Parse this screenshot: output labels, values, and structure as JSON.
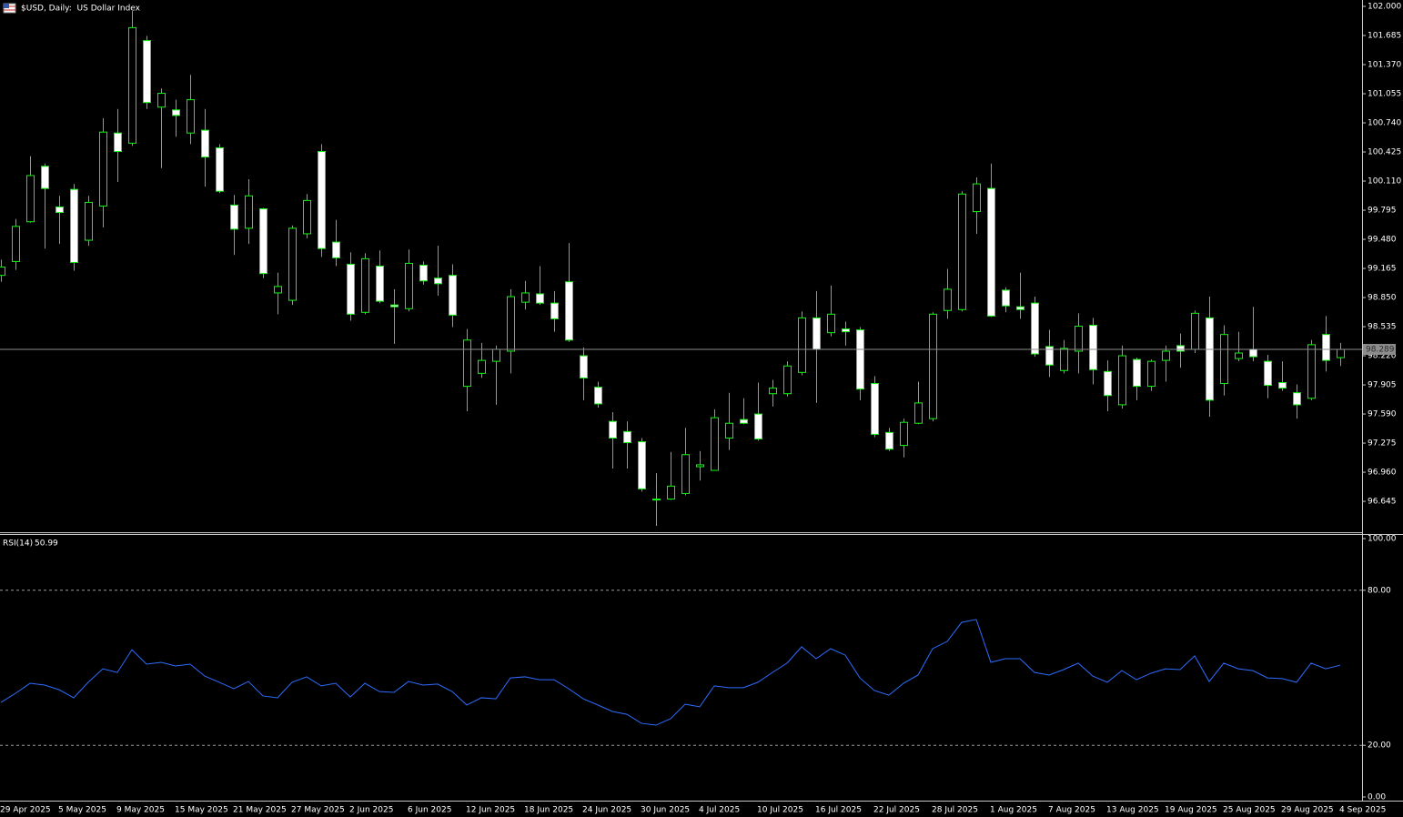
{
  "chart_data": [
    {
      "type": "candlestick",
      "title": "$USD, Daily:  US Dollar Index",
      "categories": [
        "29 Apr 2025",
        null,
        null,
        null,
        "5 May 2025",
        null,
        null,
        null,
        "9 May 2025",
        null,
        null,
        null,
        "15 May 2025",
        null,
        null,
        null,
        "21 May 2025",
        null,
        null,
        null,
        "27 May 2025",
        null,
        null,
        null,
        "2 Jun 2025",
        null,
        null,
        null,
        "6 Jun 2025",
        null,
        null,
        null,
        "12 Jun 2025",
        null,
        null,
        null,
        "18 Jun 2025",
        null,
        null,
        null,
        "24 Jun 2025",
        null,
        null,
        null,
        "30 Jun 2025",
        null,
        null,
        null,
        "4 Jul 2025",
        null,
        null,
        null,
        "10 Jul 2025",
        null,
        null,
        null,
        "16 Jul 2025",
        null,
        null,
        null,
        "22 Jul 2025",
        null,
        null,
        null,
        "28 Jul 2025",
        null,
        null,
        null,
        "1 Aug 2025",
        null,
        null,
        null,
        "7 Aug 2025",
        null,
        null,
        null,
        "13 Aug 2025",
        null,
        null,
        null,
        "19 Aug 2025",
        null,
        null,
        null,
        "25 Aug 2025",
        null,
        null,
        null,
        "29 Aug 2025",
        null,
        null,
        null,
        "4 Sep 2025"
      ],
      "open": [
        99.09,
        99.24,
        99.67,
        100.27,
        99.83,
        100.02,
        99.47,
        99.84,
        100.63,
        100.52,
        101.63,
        100.91,
        100.88,
        100.63,
        100.66,
        100.47,
        99.85,
        99.6,
        99.81,
        98.9,
        98.82,
        99.54,
        100.43,
        99.45,
        99.21,
        98.69,
        99.19,
        98.77,
        98.73,
        99.2,
        99.06,
        99.09,
        97.89,
        98.03,
        98.16,
        98.27,
        98.8,
        98.89,
        98.79,
        99.02,
        98.22,
        97.88,
        97.51,
        97.4,
        97.29,
        96.67,
        96.67,
        96.73,
        97.02,
        96.98,
        97.33,
        97.53,
        97.59,
        97.81,
        97.81,
        98.04,
        98.63,
        98.47,
        98.51,
        98.5,
        97.92,
        97.39,
        97.25,
        97.49,
        97.54,
        98.71,
        98.72,
        99.78,
        100.03,
        98.93,
        98.75,
        98.79,
        98.32,
        98.06,
        98.27,
        98.55,
        98.05,
        97.69,
        98.18,
        97.89,
        98.17,
        98.33,
        98.29,
        98.63,
        97.92,
        98.19,
        98.29,
        98.16,
        97.93,
        97.82,
        97.76,
        98.45,
        98.2
      ],
      "high": [
        99.26,
        99.7,
        100.38,
        100.3,
        99.95,
        100.08,
        99.95,
        100.79,
        100.89,
        101.95,
        101.68,
        101.11,
        100.99,
        101.26,
        100.89,
        100.51,
        99.96,
        100.13,
        99.82,
        99.12,
        99.63,
        99.97,
        100.51,
        99.69,
        99.34,
        99.33,
        99.36,
        98.94,
        99.37,
        99.24,
        99.41,
        99.21,
        98.51,
        98.36,
        98.33,
        98.94,
        99.03,
        99.19,
        98.92,
        99.44,
        98.31,
        97.94,
        97.61,
        97.51,
        97.33,
        96.95,
        97.18,
        97.44,
        97.19,
        97.64,
        97.82,
        97.76,
        97.93,
        97.96,
        98.16,
        98.7,
        98.92,
        98.98,
        98.59,
        98.53,
        98.0,
        97.44,
        97.54,
        97.94,
        98.69,
        99.16,
        100.0,
        100.15,
        100.3,
        98.96,
        99.12,
        98.86,
        98.5,
        98.39,
        98.68,
        98.63,
        98.17,
        98.33,
        98.2,
        98.18,
        98.33,
        98.46,
        98.71,
        98.86,
        98.55,
        98.48,
        98.75,
        98.23,
        98.16,
        97.91,
        98.39,
        98.65,
        98.36
      ],
      "low": [
        99.02,
        99.15,
        99.66,
        99.38,
        99.43,
        99.14,
        99.41,
        99.61,
        100.1,
        100.49,
        100.89,
        100.25,
        100.59,
        100.51,
        100.05,
        99.98,
        99.31,
        99.43,
        99.06,
        98.67,
        98.77,
        99.49,
        99.29,
        99.19,
        98.6,
        98.67,
        98.79,
        98.35,
        98.7,
        98.99,
        98.87,
        98.53,
        97.62,
        97.98,
        97.69,
        98.03,
        98.72,
        98.77,
        98.48,
        98.37,
        97.74,
        97.66,
        97.0,
        97.0,
        96.75,
        96.38,
        96.66,
        96.71,
        96.87,
        96.98,
        97.2,
        97.48,
        97.3,
        97.67,
        97.78,
        98.01,
        97.71,
        98.43,
        98.33,
        97.74,
        97.34,
        97.19,
        97.12,
        97.48,
        97.51,
        98.62,
        98.7,
        99.54,
        98.64,
        98.69,
        98.62,
        98.21,
        97.99,
        98.03,
        98.03,
        97.91,
        97.62,
        97.65,
        97.74,
        97.84,
        97.94,
        98.09,
        98.25,
        97.56,
        97.79,
        98.16,
        98.16,
        97.76,
        97.84,
        97.54,
        97.74,
        98.05,
        98.11
      ],
      "close": [
        99.18,
        99.62,
        100.17,
        100.03,
        99.77,
        99.23,
        99.88,
        100.64,
        100.43,
        101.77,
        100.96,
        101.06,
        100.82,
        100.99,
        100.37,
        100.0,
        99.59,
        99.95,
        99.11,
        98.97,
        99.6,
        99.9,
        99.38,
        99.28,
        98.67,
        99.27,
        98.81,
        98.75,
        99.22,
        99.03,
        99.0,
        98.66,
        98.39,
        98.17,
        98.29,
        98.86,
        98.9,
        98.79,
        98.62,
        98.39,
        97.98,
        97.7,
        97.33,
        97.28,
        96.78,
        96.66,
        96.81,
        97.15,
        97.04,
        97.55,
        97.49,
        97.49,
        97.32,
        97.87,
        98.11,
        98.63,
        98.29,
        98.67,
        98.48,
        97.86,
        97.37,
        97.21,
        97.5,
        97.71,
        98.67,
        98.94,
        99.97,
        100.08,
        98.65,
        98.76,
        98.72,
        98.24,
        98.12,
        98.3,
        98.54,
        98.07,
        97.79,
        98.22,
        97.89,
        98.16,
        98.27,
        98.27,
        98.68,
        97.74,
        98.45,
        98.25,
        98.21,
        97.9,
        97.87,
        97.69,
        98.34,
        98.17,
        98.289
      ],
      "up_color": "#000000",
      "down_color": "#ffffff",
      "wick_color": "#00ff00",
      "ylim": [
        96.311,
        102.069
      ],
      "yticks": [
        {
          "value": 102,
          "label": "102.000"
        },
        101.685,
        {
          "value": 101.37,
          "label": "101.370"
        },
        101.055,
        {
          "value": 100.74,
          "label": "100.740"
        },
        100.425,
        {
          "value": 100.11,
          "label": "100.110"
        },
        99.795,
        {
          "value": 99.48,
          "label": "99.480"
        },
        99.165,
        {
          "value": 98.85,
          "label": "98.850"
        },
        98.535,
        {
          "value": 98.22,
          "label": "98.220"
        },
        97.905,
        {
          "value": 97.59,
          "label": "97.590"
        },
        97.275,
        {
          "value": 96.96,
          "label": "96.960"
        },
        96.645
      ]
    },
    {
      "type": "line",
      "title": "RSI(14)",
      "values": [
        36.6,
        40.1,
        44.0,
        43.3,
        41.5,
        38.4,
        44.4,
        49.6,
        48.2,
        57.0,
        51.4,
        52.1,
        50.7,
        51.4,
        46.8,
        44.4,
        41.9,
        44.7,
        39.1,
        38.4,
        44.4,
        46.5,
        43.0,
        44.0,
        38.7,
        44.0,
        40.8,
        40.5,
        44.7,
        43.3,
        43.7,
        40.8,
        35.6,
        38.4,
        38.0,
        46.1,
        46.5,
        45.4,
        45.4,
        41.9,
        38.0,
        35.6,
        33.1,
        32.0,
        28.5,
        27.8,
        30.3,
        35.9,
        34.9,
        43.0,
        42.3,
        42.3,
        44.4,
        48.2,
        51.8,
        58.1,
        53.5,
        57.4,
        54.9,
        46.1,
        41.2,
        39.4,
        44.0,
        47.2,
        57.4,
        60.2,
        67.6,
        68.7,
        52.1,
        53.5,
        53.5,
        48.2,
        47.2,
        49.3,
        51.8,
        46.8,
        44.4,
        48.9,
        45.4,
        47.9,
        49.6,
        49.3,
        54.6,
        44.7,
        51.8,
        49.6,
        48.9,
        46.1,
        45.8,
        44.4,
        51.8,
        49.6,
        50.99
      ],
      "color": "#2f6cff",
      "ylim": [
        0,
        100
      ],
      "yticks": [
        {
          "value": 100,
          "label": "100.00"
        },
        {
          "value": 80,
          "label": "80.00"
        },
        {
          "value": 20,
          "label": "20.00"
        },
        {
          "value": 0,
          "label": "0.00"
        }
      ]
    }
  ]
}
